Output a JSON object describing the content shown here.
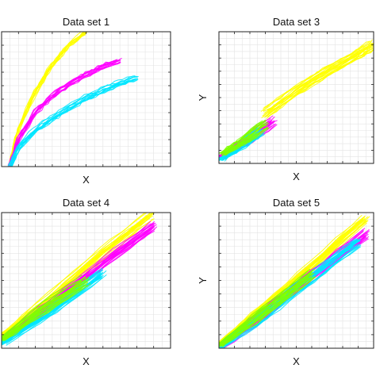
{
  "chart_data": [
    {
      "type": "line",
      "title": "Data set 1",
      "xlabel": "X",
      "ylabel": "",
      "grid": true,
      "xlim": [
        0,
        1
      ],
      "ylim": [
        0,
        1
      ],
      "series": [
        {
          "color": "#ffff00",
          "x": [
            0.05,
            0.1,
            0.2,
            0.3,
            0.4,
            0.5
          ],
          "values": [
            0.0,
            0.28,
            0.55,
            0.75,
            0.9,
            1.0
          ]
        },
        {
          "color": "#ff00ff",
          "x": [
            0.05,
            0.1,
            0.2,
            0.3,
            0.4,
            0.5,
            0.6,
            0.7
          ],
          "values": [
            0.0,
            0.2,
            0.4,
            0.52,
            0.61,
            0.68,
            0.74,
            0.78
          ]
        },
        {
          "color": "#00e5ff",
          "x": [
            0.05,
            0.1,
            0.2,
            0.3,
            0.4,
            0.5,
            0.6,
            0.7,
            0.8
          ],
          "values": [
            0.0,
            0.14,
            0.27,
            0.36,
            0.44,
            0.51,
            0.57,
            0.62,
            0.66
          ]
        }
      ]
    },
    {
      "type": "line",
      "title": "Data set 3",
      "xlabel": "X",
      "ylabel": "Y",
      "grid": true,
      "xlim": [
        0,
        1
      ],
      "ylim": [
        0,
        1
      ],
      "series": [
        {
          "color": "#ffff00",
          "x": [
            0.3,
            0.5,
            0.7,
            0.9,
            1.0
          ],
          "values": [
            0.38,
            0.55,
            0.7,
            0.83,
            0.9
          ]
        },
        {
          "color": "#ff00ff",
          "x": [
            0.02,
            0.15,
            0.35
          ],
          "values": [
            0.05,
            0.15,
            0.32
          ]
        },
        {
          "color": "#00e5ff",
          "x": [
            0.02,
            0.12,
            0.28
          ],
          "values": [
            0.03,
            0.11,
            0.25
          ]
        },
        {
          "color": "#7fff00",
          "x": [
            0.02,
            0.14,
            0.3
          ],
          "values": [
            0.07,
            0.16,
            0.3
          ]
        }
      ]
    },
    {
      "type": "line",
      "title": "Data set 4",
      "xlabel": "X",
      "ylabel": "",
      "grid": true,
      "xlim": [
        0,
        1
      ],
      "ylim": [
        0,
        1
      ],
      "series": [
        {
          "color": "#ffff00",
          "x": [
            0.0,
            0.3,
            0.6,
            0.88
          ],
          "values": [
            0.08,
            0.38,
            0.7,
            0.98
          ]
        },
        {
          "color": "#ff00ff",
          "x": [
            0.0,
            0.3,
            0.6,
            0.9
          ],
          "values": [
            0.05,
            0.33,
            0.63,
            0.9
          ]
        },
        {
          "color": "#00e5ff",
          "x": [
            0.0,
            0.3,
            0.6
          ],
          "values": [
            0.03,
            0.28,
            0.55
          ]
        },
        {
          "color": "#7fff00",
          "x": [
            0.0,
            0.25,
            0.5
          ],
          "values": [
            0.06,
            0.3,
            0.5
          ]
        }
      ]
    },
    {
      "type": "line",
      "title": "Data set 5",
      "xlabel": "X",
      "ylabel": "Y",
      "grid": true,
      "xlim": [
        0,
        1
      ],
      "ylim": [
        0,
        1
      ],
      "series": [
        {
          "color": "#ffff00",
          "x": [
            0.0,
            0.3,
            0.6,
            0.95
          ],
          "values": [
            0.02,
            0.3,
            0.6,
            0.95
          ]
        },
        {
          "color": "#ff00ff",
          "x": [
            0.0,
            0.3,
            0.6,
            0.95
          ],
          "values": [
            0.0,
            0.27,
            0.55,
            0.85
          ]
        },
        {
          "color": "#00e5ff",
          "x": [
            0.0,
            0.3,
            0.6,
            0.9
          ],
          "values": [
            0.0,
            0.25,
            0.52,
            0.78
          ]
        },
        {
          "color": "#7fff00",
          "x": [
            0.0,
            0.3,
            0.6
          ],
          "values": [
            0.02,
            0.28,
            0.55
          ]
        }
      ]
    }
  ]
}
